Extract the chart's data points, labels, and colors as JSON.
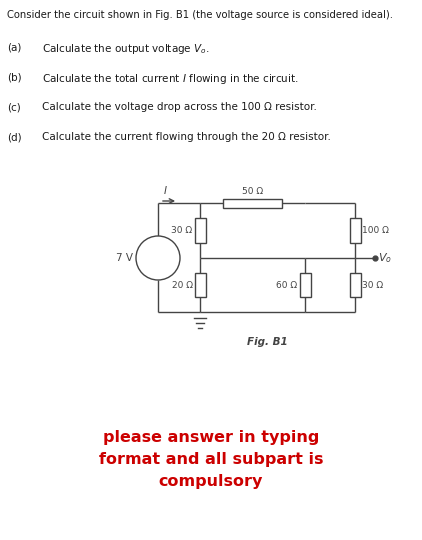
{
  "title_text": "Consider the circuit shown in Fig. B1 (the voltage source is considered ideal).",
  "qa_label": "(a)",
  "qa_text": "Calculate the output voltage ",
  "qa_math": "V_o",
  "qb_label": "(b)",
  "qb_text": "Calculate the total current I flowing in the circuit.",
  "qc_label": "(c)",
  "qc_text": "Calculate the voltage drop across the 100 Ω resistor.",
  "qd_label": "(d)",
  "qd_text": "Calculate the current flowing through the 20 Ω resistor.",
  "fig_label": "Fig. B1",
  "red_text_line1": "please answer in typing",
  "red_text_line2": "format and all subpart is",
  "red_text_line3": "compulsory",
  "bg_color": "#ffffff",
  "text_color": "#1a1a1a",
  "red_color": "#cc0000",
  "circuit_color": "#444444",
  "voltage_label": "7 V",
  "lw": 1.0
}
